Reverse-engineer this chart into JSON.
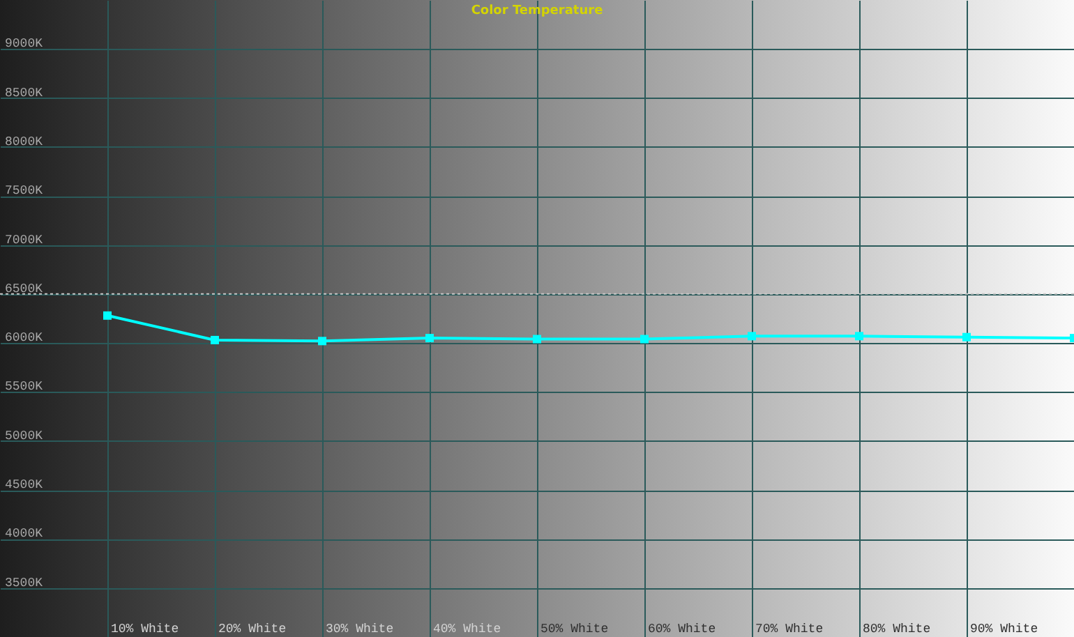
{
  "chart_data": {
    "type": "line",
    "title": "Color Temperature",
    "categories": [
      "10% White",
      "20% White",
      "30% White",
      "40% White",
      "50% White",
      "60% White",
      "70% White",
      "80% White",
      "90% White",
      null
    ],
    "series": [
      {
        "color": "#00ffff",
        "values": [
          6280,
          6030,
          6020,
          6050,
          6040,
          6040,
          6070,
          6070,
          6060,
          6050
        ]
      }
    ],
    "ylim": [
      3000,
      9500
    ],
    "yticks": [
      {
        "value": 3500,
        "label": "3500K"
      },
      {
        "value": 4000,
        "label": "4000K"
      },
      {
        "value": 4500,
        "label": "4500K"
      },
      {
        "value": 5000,
        "label": "5000K"
      },
      {
        "value": 5500,
        "label": "5500K"
      },
      {
        "value": 6000,
        "label": "6000K"
      },
      {
        "value": 6500,
        "label": "6500K"
      },
      {
        "value": 7000,
        "label": "7000K"
      },
      {
        "value": 7500,
        "label": "7500K"
      },
      {
        "value": 8000,
        "label": "8000K"
      },
      {
        "value": 8500,
        "label": "8500K"
      },
      {
        "value": 9000,
        "label": "9000K"
      }
    ],
    "grid": true,
    "marker": "square",
    "line_style": "solid",
    "ref_lines": [
      {
        "axis": "y",
        "value": 6500,
        "color": "#c8c8c8",
        "line_style": "dotted"
      }
    ]
  }
}
